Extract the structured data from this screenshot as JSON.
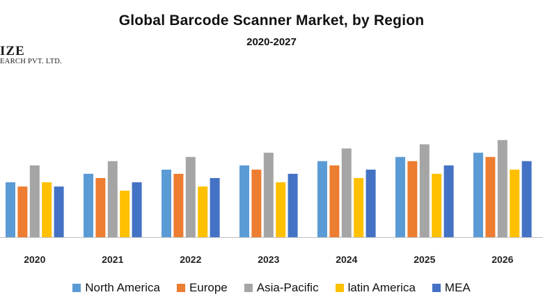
{
  "logo": {
    "main_text": "IZE",
    "sub_text": "EARCH PVT. LTD."
  },
  "chart_data": {
    "type": "bar",
    "title": "Global Barcode Scanner Market, by Region",
    "subtitle": "2020-2027",
    "xlabel": "",
    "ylabel": "",
    "ylim": [
      0,
      23
    ],
    "grid": false,
    "legend_position": "bottom",
    "categories": [
      "2020",
      "2021",
      "2022",
      "2023",
      "2024",
      "2025",
      "2026"
    ],
    "series": [
      {
        "name": "North America",
        "color": "#5b9bd5",
        "values": [
          13,
          15,
          16,
          17,
          18,
          19,
          20
        ]
      },
      {
        "name": "Europe",
        "color": "#ed7d31",
        "values": [
          12,
          14,
          15,
          16,
          17,
          18,
          19
        ]
      },
      {
        "name": "Asia-Pacific",
        "color": "#a5a5a5",
        "values": [
          17,
          18,
          19,
          20,
          21,
          22,
          23
        ]
      },
      {
        "name": "latin America",
        "color": "#ffc000",
        "values": [
          13,
          11,
          12,
          13,
          14,
          15,
          16
        ]
      },
      {
        "name": "MEA",
        "color": "#4472c4",
        "values": [
          12,
          13,
          14,
          15,
          16,
          17,
          18
        ]
      }
    ]
  }
}
